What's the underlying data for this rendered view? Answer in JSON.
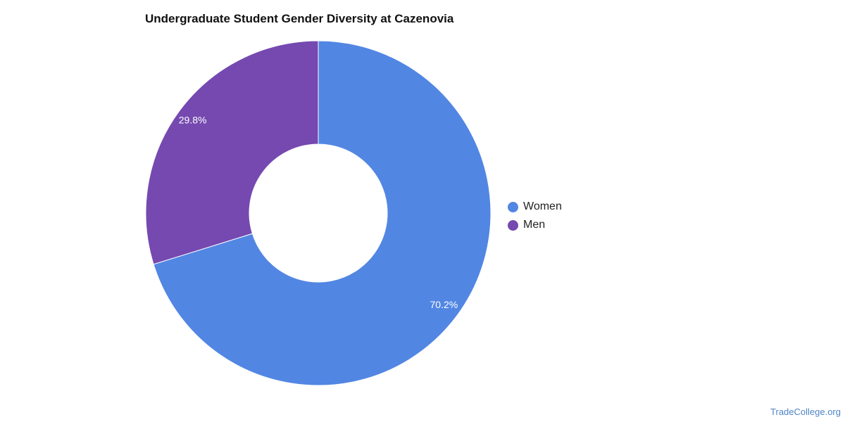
{
  "chart_data": {
    "type": "pie",
    "title": "Undergraduate Student Gender Diversity at Cazenovia",
    "donut": true,
    "slices": [
      {
        "label": "Women",
        "value": 70.2,
        "value_label": "70.2%",
        "color": "#5286e3"
      },
      {
        "label": "Men",
        "value": 29.8,
        "value_label": "29.8%",
        "color": "#7549b0"
      }
    ],
    "legend_position": "right"
  },
  "watermark": "TradeCollege.org"
}
